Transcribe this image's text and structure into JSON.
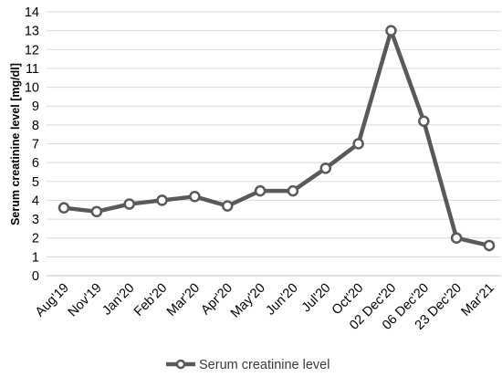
{
  "chart_data": {
    "type": "line",
    "title": "",
    "xlabel": "",
    "ylabel": "Serum creatinine level [mg/dl]",
    "categories": [
      "Aug'19",
      "Nov'19",
      "Jan'20",
      "Feb'20",
      "Mar'20",
      "Apr'20",
      "May'20",
      "Jun'20",
      "Jul'20",
      "Oct'20",
      "02 Dec'20",
      "06 Dec'20",
      "23 Dec'20",
      "Mar'21"
    ],
    "series": [
      {
        "name": "Serum creatinine level",
        "values": [
          3.6,
          3.4,
          3.8,
          4.0,
          4.2,
          3.7,
          4.5,
          4.5,
          5.7,
          7.0,
          13.0,
          8.2,
          2.0,
          1.6
        ]
      }
    ],
    "ylim": [
      0,
      14
    ],
    "yticks": [
      0,
      1,
      2,
      3,
      4,
      5,
      6,
      7,
      8,
      9,
      10,
      11,
      12,
      13,
      14
    ],
    "grid": "horizontal",
    "legend": "bottom",
    "colors": {
      "line": "#595959",
      "marker_fill": "#ffffff",
      "grid": "#d9d9d9",
      "axis": "#bfbfbf"
    }
  }
}
